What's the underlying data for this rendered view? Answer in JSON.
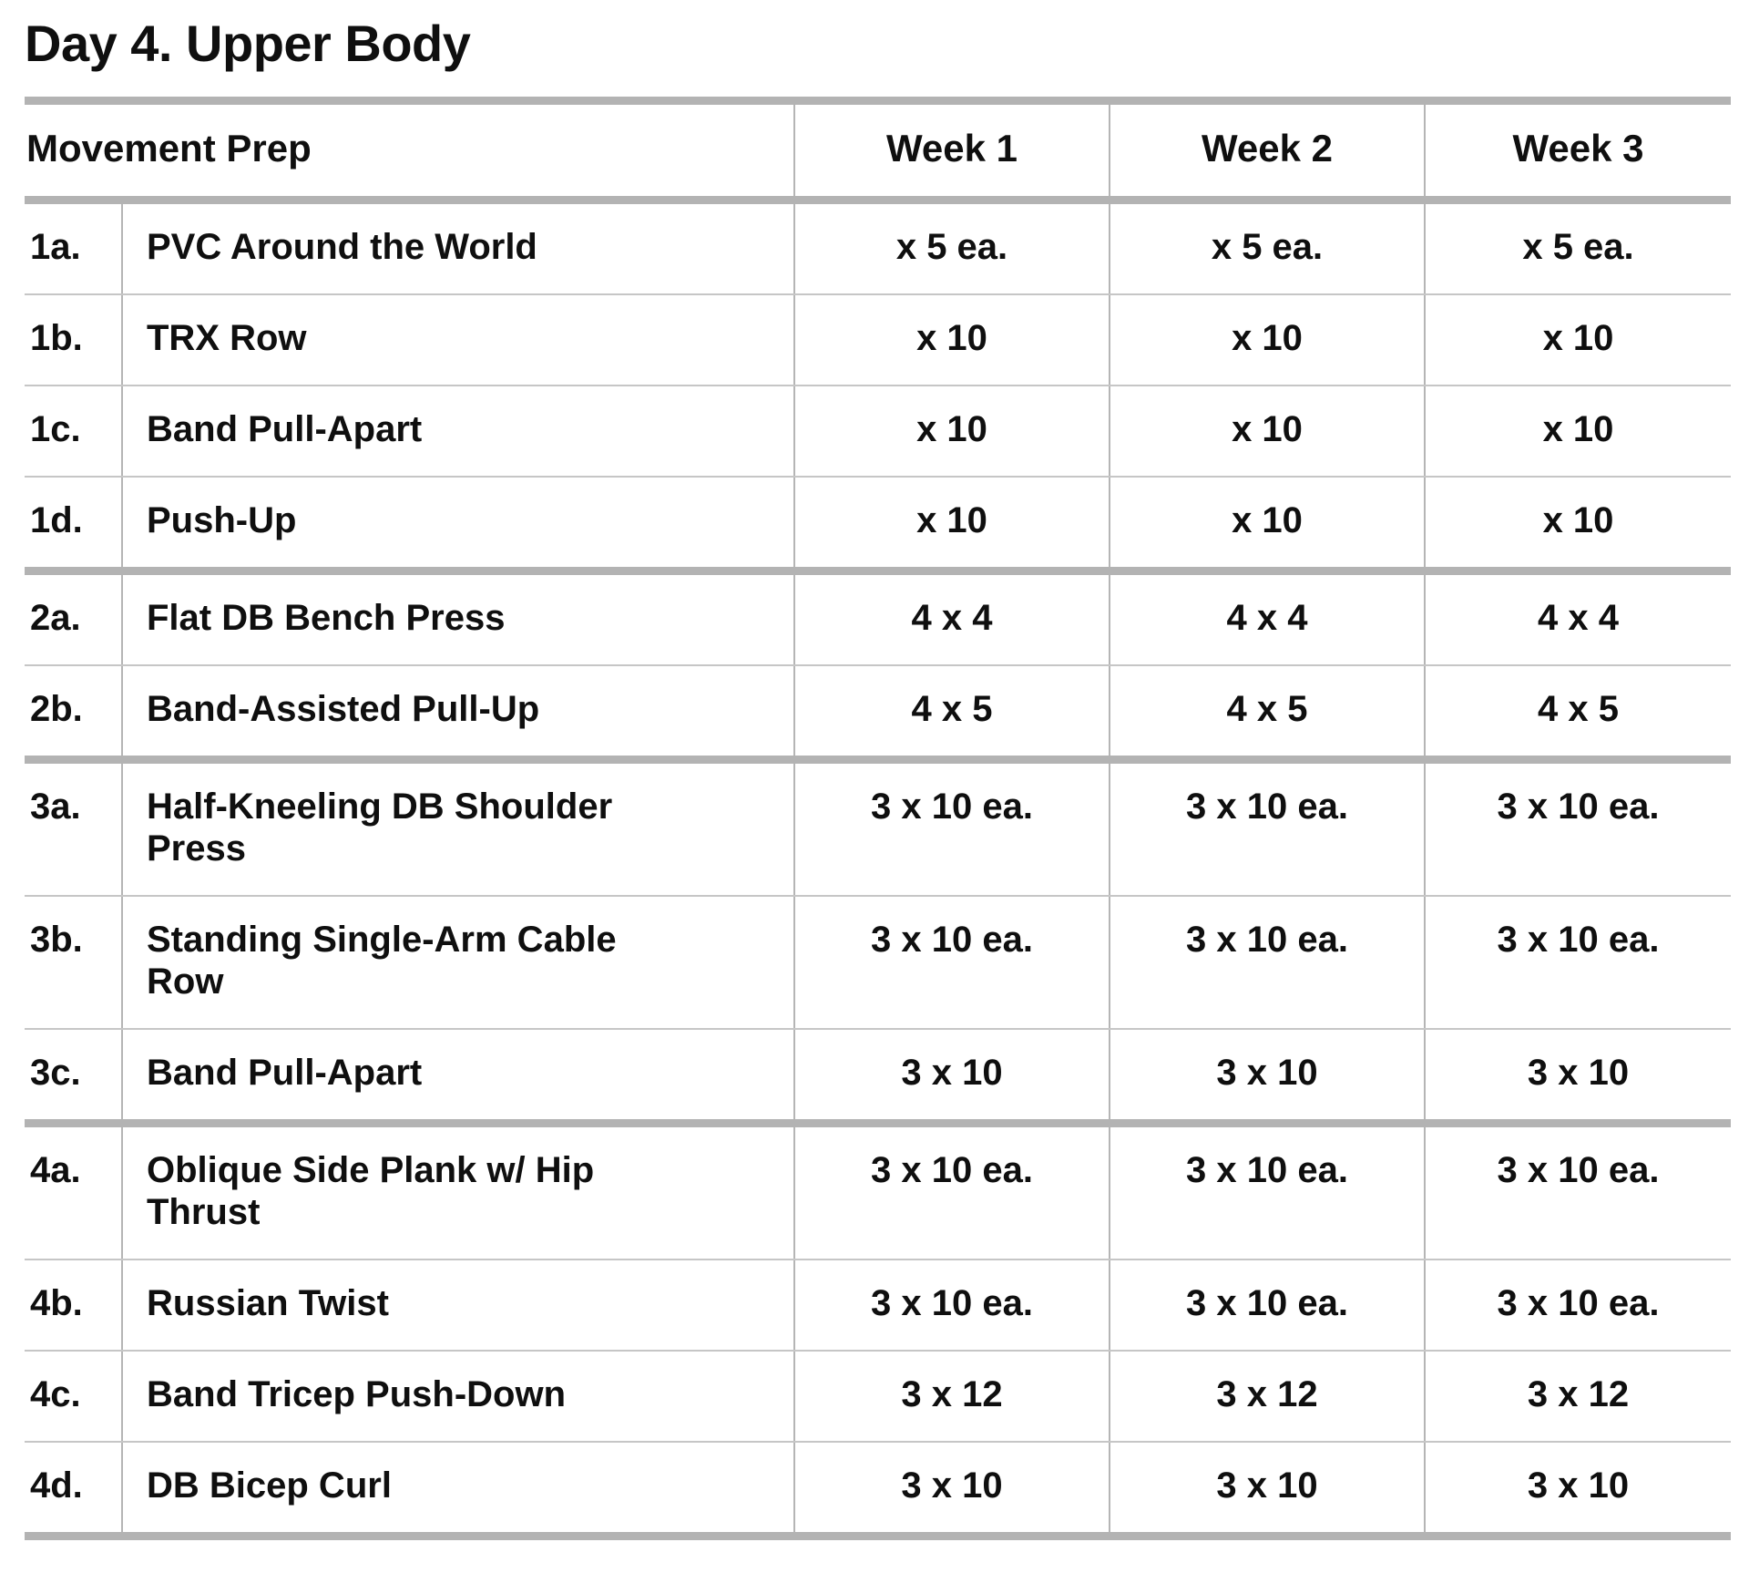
{
  "title": "Day 4. Upper Body",
  "table": {
    "headers": {
      "prep": "Movement Prep",
      "week1": "Week 1",
      "week2": "Week 2",
      "week3": "Week 3"
    },
    "rows": [
      {
        "num": "1a.",
        "name": "PVC Around the World",
        "week1": "x 5 ea.",
        "week2": "x 5 ea.",
        "week3": "x 5 ea."
      },
      {
        "num": "1b.",
        "name": "TRX Row",
        "week1": "x 10",
        "week2": "x 10",
        "week3": "x 10"
      },
      {
        "num": "1c.",
        "name": "Band Pull-Apart",
        "week1": "x 10",
        "week2": "x 10",
        "week3": "x 10"
      },
      {
        "num": "1d.",
        "name": "Push-Up",
        "week1": "x 10",
        "week2": "x 10",
        "week3": "x 10"
      },
      {
        "num": "2a.",
        "name": "Flat DB Bench Press",
        "week1": "4 x 4",
        "week2": "4 x 4",
        "week3": "4 x 4"
      },
      {
        "num": "2b.",
        "name": "Band-Assisted Pull-Up",
        "week1": "4 x 5",
        "week2": "4 x 5",
        "week3": "4 x 5"
      },
      {
        "num": "3a.",
        "name": "Half-Kneeling DB Shoulder Press",
        "week1": "3 x 10 ea.",
        "week2": "3 x 10 ea.",
        "week3": "3 x 10 ea."
      },
      {
        "num": "3b.",
        "name": "Standing Single-Arm Cable Row",
        "week1": "3 x 10 ea.",
        "week2": "3 x 10 ea.",
        "week3": "3 x 10 ea."
      },
      {
        "num": "3c.",
        "name": "Band Pull-Apart",
        "week1": "3 x 10",
        "week2": "3 x 10",
        "week3": "3 x 10"
      },
      {
        "num": "4a.",
        "name": "Oblique Side Plank w/ Hip Thrust",
        "week1": "3 x 10 ea.",
        "week2": "3 x 10 ea.",
        "week3": "3 x 10 ea."
      },
      {
        "num": "4b.",
        "name": "Russian Twist",
        "week1": "3 x 10 ea.",
        "week2": "3 x 10 ea.",
        "week3": "3 x 10 ea."
      },
      {
        "num": "4c.",
        "name": "Band Tricep Push-Down",
        "week1": "3 x 12",
        "week2": "3 x 12",
        "week3": "3 x 12"
      },
      {
        "num": "4d.",
        "name": "DB Bicep Curl",
        "week1": "3 x 10",
        "week2": "3 x 10",
        "week3": "3 x 10"
      }
    ]
  },
  "colors": {
    "thick_bar": "#b3b3b3",
    "thin_line": "#c6c6c6",
    "vertical_divider": "#b5b5b5",
    "text": "#0f0f0f"
  }
}
